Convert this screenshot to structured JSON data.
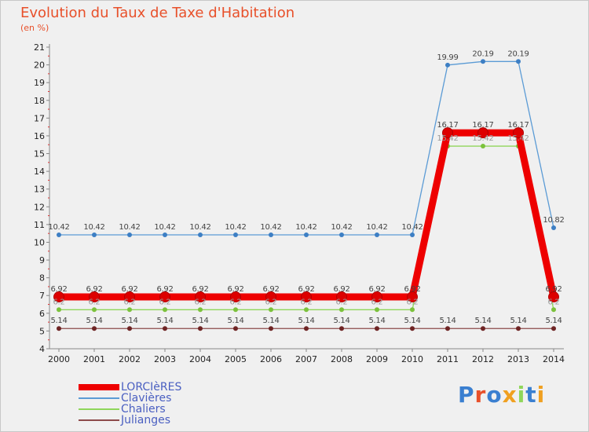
{
  "header": {
    "title": "Evolution du Taux de Taxe d'Habitation",
    "subtitle": "(en %)"
  },
  "chart_data": {
    "type": "line",
    "x": [
      "2000",
      "2001",
      "2002",
      "2003",
      "2004",
      "2005",
      "2006",
      "2007",
      "2008",
      "2009",
      "2010",
      "2011",
      "2012",
      "2013",
      "2014"
    ],
    "ylim": [
      4,
      21
    ],
    "yticks": [
      4,
      5,
      6,
      7,
      8,
      9,
      10,
      11,
      12,
      13,
      14,
      15,
      16,
      17,
      18,
      19,
      20,
      21
    ],
    "grid": false,
    "legend_position": "bottom-left",
    "series": [
      {
        "name": "Clavières",
        "color": "#5b9bd5",
        "point_color": "#3d7fc4",
        "values": [
          10.42,
          10.42,
          10.42,
          10.42,
          10.42,
          10.42,
          10.42,
          10.42,
          10.42,
          10.42,
          10.42,
          19.99,
          20.19,
          20.19,
          10.82
        ],
        "labels": [
          "10.42",
          "10.42",
          "10.42",
          "10.42",
          "10.42",
          "10.42",
          "10.42",
          "10.42",
          "10.42",
          "10.42",
          "10.42",
          "19.99",
          "20.19",
          "20.19",
          "10.82"
        ]
      },
      {
        "name": "Chaliers",
        "color": "#8fd65a",
        "point_color": "#7cc23c",
        "values": [
          6.2,
          6.2,
          6.2,
          6.2,
          6.2,
          6.2,
          6.2,
          6.2,
          6.2,
          6.2,
          6.2,
          15.42,
          15.42,
          15.42,
          6.2
        ],
        "labels": [
          "6.2",
          "6.2",
          "6.2",
          "6.2",
          "6.2",
          "6.2",
          "6.2",
          "6.2",
          "6.2",
          "6.2",
          "6.2",
          "15.42",
          "15.42",
          "15.42",
          "6.2"
        ]
      },
      {
        "name": "Julianges",
        "color": "#8c4a4a",
        "point_color": "#6e2424",
        "values": [
          5.14,
          5.14,
          5.14,
          5.14,
          5.14,
          5.14,
          5.14,
          5.14,
          5.14,
          5.14,
          5.14,
          5.14,
          5.14,
          5.14,
          5.14
        ],
        "labels": [
          "5.14",
          "5.14",
          "5.14",
          "5.14",
          "5.14",
          "5.14",
          "5.14",
          "5.14",
          "5.14",
          "5.14",
          "5.14",
          "5.14",
          "5.14",
          "5.14",
          "5.14"
        ]
      },
      {
        "name": "LORCIèRES",
        "color": "#ee0000",
        "point_color": "#dd0000",
        "emphasis": true,
        "values": [
          6.92,
          6.92,
          6.92,
          6.92,
          6.92,
          6.92,
          6.92,
          6.92,
          6.92,
          6.92,
          6.92,
          16.17,
          16.17,
          16.17,
          6.92
        ],
        "labels": [
          "6.92",
          "6.92",
          "6.92",
          "6.92",
          "6.92",
          "6.92",
          "6.92",
          "6.92",
          "6.92",
          "6.92",
          "6.92",
          "16.17",
          "16.17",
          "16.17",
          "6.92"
        ]
      }
    ],
    "legend_order": [
      "LORCIèRES",
      "Clavières",
      "Chaliers",
      "Julianges"
    ]
  },
  "logo": {
    "letters": [
      {
        "ch": "P",
        "color": "#3a7fd0"
      },
      {
        "ch": "r",
        "color": "#e8502a"
      },
      {
        "ch": "o",
        "color": "#3a7fd0"
      },
      {
        "ch": "x",
        "color": "#f0a020"
      },
      {
        "ch": "i",
        "color": "#8fd65a"
      },
      {
        "ch": "t",
        "color": "#3a7fd0"
      },
      {
        "ch": "i",
        "color": "#f0a020"
      }
    ]
  }
}
